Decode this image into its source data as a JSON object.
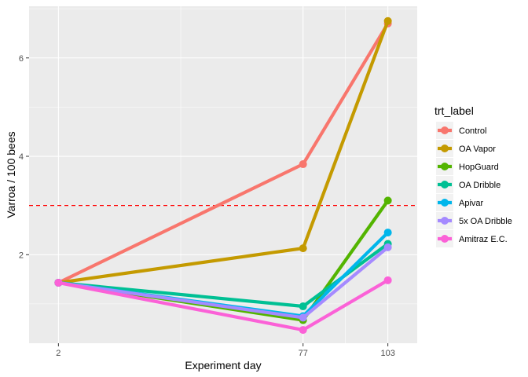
{
  "chart_data": {
    "type": "line",
    "xlabel": "Experiment day",
    "ylabel": "Varroa / 100 bees",
    "x": [
      2,
      77,
      103
    ],
    "x_ticks": [
      "2",
      "77",
      "103"
    ],
    "xlim": [
      -7.0,
      112.0
    ],
    "y_ticks": [
      2,
      4,
      6
    ],
    "ylim": [
      0.2,
      7.05
    ],
    "threshold": {
      "value": 3,
      "color": "#FF0000",
      "style": "dashed"
    },
    "grid": true,
    "panel_background": "#EBEBEB",
    "legend": {
      "title": "trt_label",
      "position": "right"
    },
    "series": [
      {
        "name": "Control",
        "color": "#F8766D",
        "values": [
          1.43,
          3.84,
          6.7
        ]
      },
      {
        "name": "OA Vapor",
        "color": "#C49A00",
        "values": [
          1.43,
          2.13,
          6.75
        ]
      },
      {
        "name": "HopGuard",
        "color": "#53B400",
        "values": [
          1.43,
          0.67,
          3.1
        ]
      },
      {
        "name": "OA Dribble",
        "color": "#00C094",
        "values": [
          1.43,
          0.95,
          2.22
        ]
      },
      {
        "name": "Apivar",
        "color": "#00B6EB",
        "values": [
          1.43,
          0.75,
          2.45
        ]
      },
      {
        "name": "5x OA Dribble",
        "color": "#A58AFF",
        "values": [
          1.43,
          0.72,
          2.15
        ]
      },
      {
        "name": "Amitraz E.C.",
        "color": "#FB61D7",
        "values": [
          1.43,
          0.47,
          1.48
        ]
      }
    ]
  }
}
